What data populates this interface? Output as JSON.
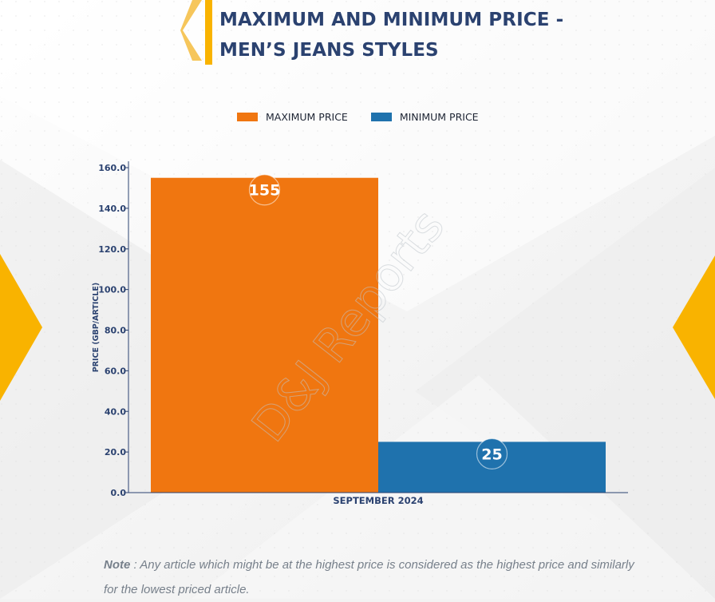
{
  "title_lines": [
    "MAXIMUM AND MINIMUM PRICE -",
    "MEN’S JEANS STYLES"
  ],
  "watermark": "D&J Reports",
  "note": {
    "label": "Note",
    "text": " : Any article which might be at the highest price is considered as the highest price and similarly for the lowest priced article."
  },
  "colors": {
    "title": "#2b4270",
    "accent": "#f9b300",
    "maximum": "#f07610",
    "minimum": "#1f72ad",
    "axis": "#2b4270",
    "note": "#77808b"
  },
  "icons": {
    "title_chevron": "left-chevron-icon",
    "left_decoration": "right-chevron-icon",
    "right_decoration": "left-chevron-icon"
  },
  "chart_data": {
    "type": "bar",
    "title": "MAXIMUM AND MINIMUM PRICE - MEN’S JEANS STYLES",
    "categories": [
      "SEPTEMBER 2024"
    ],
    "series": [
      {
        "name": "MAXIMUM PRICE",
        "values": [
          155
        ],
        "color": "#f07610"
      },
      {
        "name": "MINIMUM PRICE",
        "values": [
          25
        ],
        "color": "#1f72ad"
      }
    ],
    "xlabel": "",
    "ylabel": "PRICE (GBP/ARTICLE)",
    "ylim": [
      0,
      160
    ],
    "yticks": [
      0,
      20,
      40,
      60,
      80,
      100,
      120,
      140,
      160
    ],
    "ytick_labels": [
      "0.0",
      "20.0",
      "40.0",
      "60.0",
      "80.0",
      "100.0",
      "120.0",
      "140.0",
      "160.0"
    ],
    "data_labels": [
      "155",
      "25"
    ],
    "grid": false,
    "legend_position": "top-center"
  }
}
